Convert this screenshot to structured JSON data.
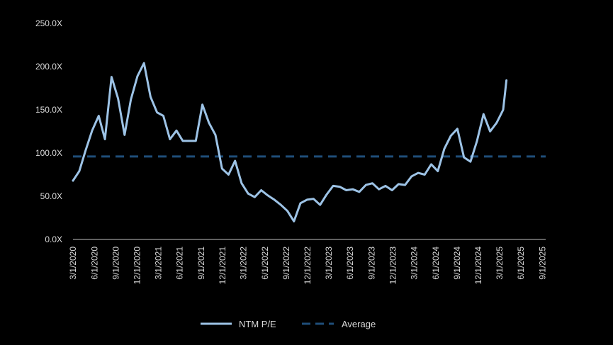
{
  "chart_data": {
    "type": "line",
    "title": "",
    "xlabel": "",
    "ylabel": "",
    "ylim": [
      0,
      250
    ],
    "yticks": [
      0,
      50,
      100,
      150,
      200,
      250
    ],
    "ytick_labels": [
      "0.0X",
      "50.0X",
      "100.0X",
      "150.0X",
      "200.0X",
      "250.0X"
    ],
    "xlim": [
      "3/1/2020",
      "9/15/2025"
    ],
    "xtick_labels": [
      "3/1/2020",
      "6/1/2020",
      "9/1/2020",
      "12/1/2020",
      "3/1/2021",
      "6/1/2021",
      "9/1/2021",
      "12/1/2021",
      "3/1/2022",
      "6/1/2022",
      "9/1/2022",
      "12/1/2022",
      "3/1/2023",
      "6/1/2023",
      "9/1/2023",
      "12/1/2023",
      "3/1/2024",
      "6/1/2024",
      "9/1/2024",
      "12/1/2024",
      "3/1/2025",
      "6/1/2025",
      "9/1/2025"
    ],
    "grid": false,
    "legend_position": "bottom",
    "series": [
      {
        "name": "NTM P/E",
        "style": "solid",
        "color": "#9dc3e6",
        "points": [
          [
            "3/1/2020",
            68
          ],
          [
            "3/28/2020",
            79
          ],
          [
            "4/24/2020",
            103
          ],
          [
            "5/22/2020",
            126
          ],
          [
            "6/19/2020",
            143
          ],
          [
            "7/16/2020",
            116
          ],
          [
            "8/13/2020",
            188
          ],
          [
            "9/10/2020",
            163
          ],
          [
            "10/8/2020",
            121
          ],
          [
            "11/4/2020",
            162
          ],
          [
            "12/2/2020",
            189
          ],
          [
            "12/30/2020",
            204
          ],
          [
            "1/27/2021",
            165
          ],
          [
            "2/24/2021",
            147
          ],
          [
            "3/23/2021",
            143
          ],
          [
            "4/20/2021",
            116
          ],
          [
            "5/18/2021",
            126
          ],
          [
            "6/14/2021",
            114
          ],
          [
            "7/12/2021",
            114
          ],
          [
            "8/9/2021",
            114
          ],
          [
            "9/6/2021",
            156
          ],
          [
            "10/4/2021",
            135
          ],
          [
            "11/1/2021",
            121
          ],
          [
            "11/29/2021",
            82
          ],
          [
            "12/27/2021",
            75
          ],
          [
            "1/24/2022",
            91
          ],
          [
            "2/21/2022",
            65
          ],
          [
            "3/21/2022",
            53
          ],
          [
            "4/18/2022",
            49
          ],
          [
            "5/16/2022",
            57
          ],
          [
            "6/13/2022",
            51
          ],
          [
            "7/11/2022",
            46
          ],
          [
            "8/8/2022",
            40
          ],
          [
            "9/5/2022",
            33
          ],
          [
            "10/3/2022",
            21
          ],
          [
            "10/31/2022",
            42
          ],
          [
            "11/28/2022",
            46
          ],
          [
            "12/26/2022",
            47
          ],
          [
            "1/23/2023",
            40
          ],
          [
            "2/20/2023",
            52
          ],
          [
            "3/20/2023",
            62
          ],
          [
            "4/17/2023",
            61
          ],
          [
            "5/15/2023",
            57
          ],
          [
            "6/12/2023",
            58
          ],
          [
            "7/10/2023",
            55
          ],
          [
            "8/7/2023",
            63
          ],
          [
            "9/4/2023",
            65
          ],
          [
            "10/2/2023",
            58
          ],
          [
            "10/30/2023",
            62
          ],
          [
            "11/27/2023",
            57
          ],
          [
            "12/25/2023",
            64
          ],
          [
            "1/22/2024",
            63
          ],
          [
            "2/19/2024",
            73
          ],
          [
            "3/18/2024",
            77
          ],
          [
            "4/15/2024",
            75
          ],
          [
            "5/13/2024",
            87
          ],
          [
            "6/10/2024",
            79
          ],
          [
            "7/8/2024",
            105
          ],
          [
            "8/5/2024",
            120
          ],
          [
            "9/2/2024",
            128
          ],
          [
            "9/30/2024",
            95
          ],
          [
            "10/28/2024",
            90
          ],
          [
            "11/25/2024",
            114
          ],
          [
            "12/23/2024",
            145
          ],
          [
            "1/20/2025",
            125
          ],
          [
            "2/17/2025",
            135
          ],
          [
            "3/17/2025",
            150
          ],
          [
            "3/31/2025",
            184
          ]
        ]
      },
      {
        "name": "Average",
        "style": "dashed",
        "color": "#1f4e79",
        "value": 96,
        "range": [
          "3/1/2020",
          "9/15/2025"
        ]
      }
    ]
  },
  "colors": {
    "background": "#000000",
    "text": "#d9d9d9",
    "axis": "#bfbfbf"
  }
}
